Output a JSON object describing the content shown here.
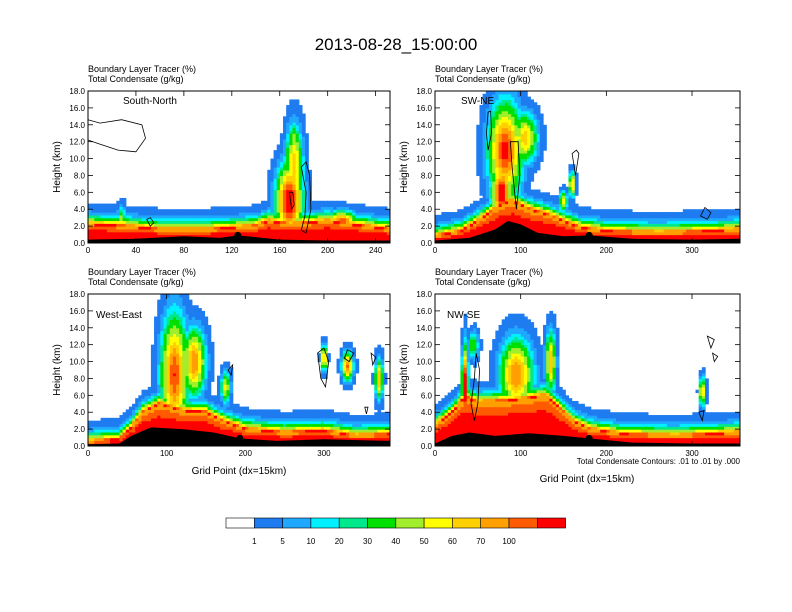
{
  "chart_data": {
    "type": "heatmap",
    "title": "2013-08-28_15:00:00",
    "footnote": "Total Condensate Contours: .01 to .01 by .000",
    "colorbar": {
      "labels": [
        "1",
        "5",
        "10",
        "20",
        "30",
        "40",
        "50",
        "60",
        "70",
        "100"
      ],
      "colors": [
        "#ffffff",
        "#1e7cf0",
        "#20a8ff",
        "#00f0ff",
        "#00e88c",
        "#00e000",
        "#a0ee2c",
        "#ffff00",
        "#ffd000",
        "#ffa000",
        "#ff5a00",
        "#ff0000"
      ]
    },
    "panels": [
      {
        "id": "sn",
        "name": "South-North",
        "header_1": "Boundary Layer Tracer   (%)",
        "header_2": "Total Condensate   (g/kg)",
        "ylabel": "Height (km)",
        "xlabel": "",
        "xlim": [
          0,
          252
        ],
        "ylim": [
          0,
          18
        ],
        "xticks": [
          "0",
          "40",
          "80",
          "120",
          "160",
          "200",
          "240"
        ],
        "yticks": [
          "0.0",
          "2.0",
          "4.0",
          "6.0",
          "8.0",
          "10.0",
          "12.0",
          "14.0",
          "16.0",
          "18.0"
        ],
        "marker": [
          125,
          0.9
        ],
        "terrain": [
          [
            0,
            0.4
          ],
          [
            40,
            0.5
          ],
          [
            80,
            0.8
          ],
          [
            110,
            0.6
          ],
          [
            125,
            0.9
          ],
          [
            140,
            0.7
          ],
          [
            160,
            0.4
          ],
          [
            200,
            0.3
          ],
          [
            252,
            0.3
          ]
        ],
        "blt_base": [
          [
            0,
            2.2
          ],
          [
            30,
            2.0
          ],
          [
            60,
            1.6
          ],
          [
            100,
            1.6
          ],
          [
            140,
            2.0
          ],
          [
            150,
            2.6
          ],
          [
            160,
            2.4
          ],
          [
            170,
            2.2
          ],
          [
            200,
            2.6
          ],
          [
            230,
            2.0
          ],
          [
            252,
            1.6
          ]
        ],
        "plumes": [
          [
            168,
            5.0,
            9,
            3.6,
            95
          ],
          [
            172,
            9,
            6,
            4,
            60
          ],
          [
            172,
            12.5,
            4,
            1.5,
            35
          ],
          [
            212,
            2.6,
            10,
            1.0,
            80
          ],
          [
            28,
            2.4,
            3,
            1.6,
            40
          ]
        ],
        "contours": [
          [
            [
              0,
              14.6
            ],
            [
              10,
              14.2
            ],
            [
              28,
              14.6
            ],
            [
              45,
              14.0
            ],
            [
              48,
              12.4
            ],
            [
              40,
              10.8
            ],
            [
              25,
              11.0
            ],
            [
              8,
              11.8
            ],
            [
              0,
              12.2
            ]
          ],
          [
            [
              178,
              9.0
            ],
            [
              182,
              6
            ],
            [
              181,
              3.2
            ],
            [
              178,
              1.5
            ],
            [
              182,
              1.2
            ],
            [
              186,
              4
            ],
            [
              185,
              8
            ],
            [
              182,
              9.6
            ]
          ],
          [
            [
              168,
              6
            ],
            [
              170,
              4
            ],
            [
              172,
              4.5
            ],
            [
              171,
              6
            ]
          ],
          [
            [
              49,
              2.8
            ],
            [
              52,
              2.0
            ],
            [
              55,
              2.4
            ],
            [
              52,
              3.0
            ]
          ]
        ]
      },
      {
        "id": "swne",
        "name": "SW-NE",
        "header_1": "Boundary Layer Tracer   (%)",
        "header_2": "Total Condensate   (g/kg)",
        "ylabel": "Height (km)",
        "xlabel": "",
        "xlim": [
          0,
          356
        ],
        "ylim": [
          0,
          18
        ],
        "xticks": [
          "0",
          "100",
          "200",
          "300"
        ],
        "yticks": [
          "0.0",
          "2.0",
          "4.0",
          "6.0",
          "8.0",
          "10.0",
          "12.0",
          "14.0",
          "16.0",
          "18.0"
        ],
        "marker": [
          180,
          0.9
        ],
        "terrain": [
          [
            0,
            0.3
          ],
          [
            40,
            0.6
          ],
          [
            70,
            1.6
          ],
          [
            85,
            2.6
          ],
          [
            100,
            2.2
          ],
          [
            120,
            1.2
          ],
          [
            150,
            0.8
          ],
          [
            180,
            0.9
          ],
          [
            230,
            0.5
          ],
          [
            300,
            0.4
          ],
          [
            356,
            0.5
          ]
        ],
        "blt_base": [
          [
            0,
            0.8
          ],
          [
            30,
            1.4
          ],
          [
            50,
            2.6
          ],
          [
            75,
            4.4
          ],
          [
            90,
            5.0
          ],
          [
            110,
            4.0
          ],
          [
            130,
            3.4
          ],
          [
            150,
            2.6
          ],
          [
            170,
            1.8
          ],
          [
            200,
            1.4
          ],
          [
            260,
            1.2
          ],
          [
            320,
            1.4
          ],
          [
            356,
            1.6
          ]
        ],
        "plumes": [
          [
            82,
            11,
            16,
            4.6,
            85
          ],
          [
            105,
            12.5,
            12,
            2.4,
            55
          ],
          [
            78,
            6,
            10,
            3,
            90
          ],
          [
            160,
            7,
            3,
            1.2,
            60
          ],
          [
            150,
            5,
            4,
            1,
            45
          ]
        ],
        "contours": [
          [
            [
              62,
              15.5
            ],
            [
              60,
              13
            ],
            [
              62,
              11
            ],
            [
              66,
              13
            ],
            [
              65,
              15.6
            ]
          ],
          [
            [
              88,
              12
            ],
            [
              90,
              9.0
            ],
            [
              95,
              4.0
            ],
            [
              99,
              8.0
            ],
            [
              97,
              12
            ]
          ],
          [
            [
              160,
              10.6
            ],
            [
              164,
              8
            ],
            [
              168,
              10.6
            ],
            [
              165,
              11
            ]
          ],
          [
            [
              310,
              3.2
            ],
            [
              318,
              2.8
            ],
            [
              322,
              3.6
            ],
            [
              315,
              4.2
            ]
          ]
        ]
      },
      {
        "id": "we",
        "name": "West-East",
        "header_1": "Boundary Layer Tracer   (%)",
        "header_2": "Total Condensate   (g/kg)",
        "ylabel": "Height (km)",
        "xlabel": "Grid Point (dx=15km)",
        "xlim": [
          0,
          384
        ],
        "ylim": [
          0,
          18
        ],
        "xticks": [
          "0",
          "100",
          "200",
          "300"
        ],
        "yticks": [
          "0.0",
          "2.0",
          "4.0",
          "6.0",
          "8.0",
          "10.0",
          "12.0",
          "14.0",
          "16.0",
          "18.0"
        ],
        "marker": [
          193,
          0.9
        ],
        "terrain": [
          [
            0,
            0.2
          ],
          [
            40,
            0.3
          ],
          [
            55,
            1.2
          ],
          [
            80,
            2.2
          ],
          [
            120,
            2.0
          ],
          [
            160,
            1.6
          ],
          [
            193,
            0.9
          ],
          [
            240,
            0.6
          ],
          [
            300,
            0.8
          ],
          [
            384,
            0.6
          ]
        ],
        "blt_base": [
          [
            0,
            0.5
          ],
          [
            40,
            0.8
          ],
          [
            55,
            2.2
          ],
          [
            70,
            4.0
          ],
          [
            90,
            5.0
          ],
          [
            120,
            4.2
          ],
          [
            150,
            4.0
          ],
          [
            170,
            3.0
          ],
          [
            200,
            2.0
          ],
          [
            250,
            1.6
          ],
          [
            300,
            1.8
          ],
          [
            340,
            1.2
          ],
          [
            384,
            1.4
          ]
        ],
        "plumes": [
          [
            110,
            8.5,
            14,
            5.8,
            80
          ],
          [
            135,
            10,
            12,
            3.2,
            70
          ],
          [
            175,
            7,
            5,
            1.6,
            45
          ],
          [
            300,
            10.5,
            3,
            1.2,
            70
          ],
          [
            330,
            9.5,
            6,
            1.4,
            70
          ],
          [
            370,
            8,
            4,
            2,
            60
          ]
        ],
        "contours": [
          [
            [
              292,
              11
            ],
            [
              296,
              8
            ],
            [
              302,
              7
            ],
            [
              306,
              10
            ],
            [
              300,
              11.6
            ]
          ],
          [
            [
              326,
              10.4
            ],
            [
              332,
              10.0
            ],
            [
              338,
              11
            ],
            [
              330,
              11.4
            ]
          ],
          [
            [
              360,
              11
            ],
            [
              362,
              9.6
            ],
            [
              366,
              10.5
            ]
          ],
          [
            [
              178,
              9
            ],
            [
              182,
              8.4
            ],
            [
              184,
              9.6
            ]
          ],
          [
            [
              352,
              4.6
            ],
            [
              354,
              3.8
            ],
            [
              356,
              4.6
            ]
          ]
        ]
      },
      {
        "id": "nwse",
        "name": "NW-SE",
        "header_1": "Boundary Layer Tracer   (%)",
        "header_2": "Total Condensate   (g/kg)",
        "ylabel": "Height (km)",
        "xlabel": "Grid Point (dx=15km)",
        "xlim": [
          0,
          356
        ],
        "ylim": [
          0,
          18
        ],
        "xticks": [
          "0",
          "100",
          "200",
          "300"
        ],
        "yticks": [
          "0.0",
          "2.0",
          "4.0",
          "6.0",
          "8.0",
          "10.0",
          "12.0",
          "14.0",
          "16.0",
          "18.0"
        ],
        "marker": [
          180,
          0.9
        ],
        "terrain": [
          [
            0,
            0.3
          ],
          [
            20,
            1.2
          ],
          [
            40,
            1.6
          ],
          [
            70,
            1.2
          ],
          [
            110,
            1.5
          ],
          [
            150,
            1.2
          ],
          [
            180,
            0.9
          ],
          [
            230,
            0.4
          ],
          [
            300,
            0.3
          ],
          [
            356,
            0.3
          ]
        ],
        "blt_base": [
          [
            0,
            2.4
          ],
          [
            20,
            4.0
          ],
          [
            35,
            5.8
          ],
          [
            50,
            5.2
          ],
          [
            90,
            5.4
          ],
          [
            130,
            6.0
          ],
          [
            140,
            5.0
          ],
          [
            160,
            3.0
          ],
          [
            180,
            2.0
          ],
          [
            220,
            1.4
          ],
          [
            280,
            1.2
          ],
          [
            320,
            1.4
          ],
          [
            356,
            1.6
          ]
        ],
        "plumes": [
          [
            35,
            7,
            3,
            4.0,
            95
          ],
          [
            95,
            8.5,
            16,
            3.5,
            70
          ],
          [
            135,
            10,
            5,
            3,
            60
          ],
          [
            312,
            6.5,
            3,
            1.4,
            60
          ],
          [
            45,
            12,
            5,
            1.4,
            30
          ]
        ],
        "contours": [
          [
            [
              48,
              11
            ],
            [
              46,
              8
            ],
            [
              42,
              5
            ],
            [
              46,
              3
            ],
            [
              50,
              5
            ],
            [
              52,
              9
            ]
          ],
          [
            [
              318,
              13
            ],
            [
              322,
              11.6
            ],
            [
              326,
              12.6
            ]
          ],
          [
            [
              324,
              11.0
            ],
            [
              326,
              10.0
            ],
            [
              330,
              10.6
            ]
          ],
          [
            [
              308,
              4.0
            ],
            [
              312,
              3.0
            ],
            [
              314,
              4.2
            ]
          ]
        ]
      }
    ]
  }
}
